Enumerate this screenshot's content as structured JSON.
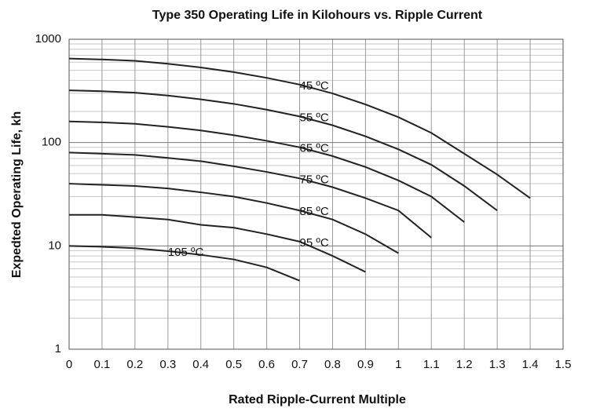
{
  "chart_data": {
    "type": "line",
    "title": "Type 350 Operating Life in Kilohours vs. Ripple Current",
    "x_label": "Rated Ripple-Current Multiple",
    "y_label": "Expedted Operating Life, kh",
    "xlim": [
      0,
      1.5
    ],
    "ylim": [
      1,
      1000
    ],
    "log_y": true,
    "grid": true,
    "xticks": [
      0,
      0.1,
      0.2,
      0.3,
      0.4,
      0.5,
      0.6,
      0.7,
      0.8,
      0.9,
      1,
      1.1,
      1.2,
      1.3,
      1.4,
      1.5
    ],
    "yticks": [
      1,
      10,
      100,
      1000
    ],
    "series": [
      {
        "name": "45 ºC",
        "color": "#222222",
        "x": [
          0,
          0.1,
          0.2,
          0.3,
          0.4,
          0.5,
          0.6,
          0.7,
          0.8,
          0.9,
          1,
          1.1,
          1.2,
          1.3,
          1.4
        ],
        "values": [
          650,
          637,
          618,
          579,
          533,
          481,
          423,
          364,
          299,
          234,
          176,
          124,
          78,
          49,
          29
        ]
      },
      {
        "name": "55 ºC",
        "color": "#222222",
        "x": [
          0,
          0.1,
          0.2,
          0.3,
          0.4,
          0.5,
          0.6,
          0.7,
          0.8,
          0.9,
          1,
          1.1,
          1.2,
          1.3
        ],
        "values": [
          320,
          314,
          304,
          285,
          262,
          237,
          208,
          179,
          147,
          115,
          86,
          61,
          38,
          22
        ]
      },
      {
        "name": "65 ºC",
        "color": "#222222",
        "x": [
          0,
          0.1,
          0.2,
          0.3,
          0.4,
          0.5,
          0.6,
          0.7,
          0.8,
          0.9,
          1,
          1.1,
          1.2
        ],
        "values": [
          160,
          157,
          152,
          142,
          131,
          118,
          104,
          90,
          74,
          58,
          43,
          30,
          17
        ]
      },
      {
        "name": "75 ºC",
        "color": "#222222",
        "x": [
          0,
          0.1,
          0.2,
          0.3,
          0.4,
          0.5,
          0.6,
          0.7,
          0.8,
          0.9,
          1,
          1.1
        ],
        "values": [
          80,
          78,
          76,
          71,
          66,
          59,
          52,
          45,
          37,
          29,
          22,
          12
        ]
      },
      {
        "name": "85 ºC",
        "color": "#222222",
        "x": [
          0,
          0.1,
          0.2,
          0.3,
          0.4,
          0.5,
          0.6,
          0.7,
          0.8,
          0.9,
          1
        ],
        "values": [
          40,
          39,
          38,
          36,
          33,
          30,
          26,
          22,
          18,
          13,
          8.5
        ]
      },
      {
        "name": "95 ºC",
        "color": "#222222",
        "x": [
          0,
          0.1,
          0.2,
          0.3,
          0.4,
          0.5,
          0.6,
          0.7,
          0.8,
          0.9
        ],
        "values": [
          20,
          20,
          19,
          18,
          16,
          15,
          13,
          11,
          8,
          5.6
        ]
      },
      {
        "name": "105 ºC",
        "color": "#222222",
        "x": [
          0,
          0.1,
          0.2,
          0.3,
          0.4,
          0.5,
          0.6,
          0.7
        ],
        "values": [
          10,
          9.8,
          9.5,
          8.9,
          8.2,
          7.4,
          6.2,
          4.6
        ]
      }
    ]
  }
}
